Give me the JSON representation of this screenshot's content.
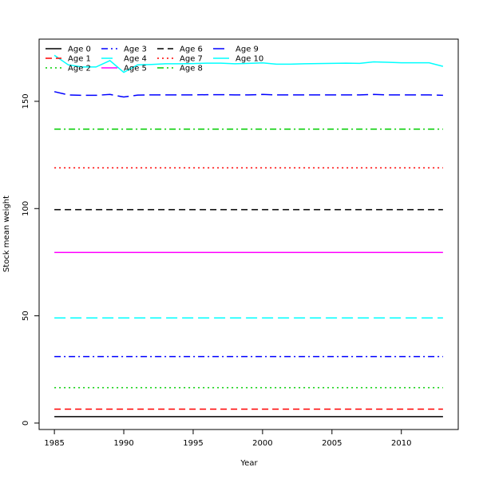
{
  "chart_data": {
    "type": "line",
    "title": "",
    "xlabel": "Year",
    "ylabel": "Stock mean weight",
    "xlim": [
      1983.9,
      2014.1
    ],
    "ylim": [
      -3,
      179
    ],
    "x_ticks": [
      1985,
      1990,
      1995,
      2000,
      2005,
      2010
    ],
    "y_ticks": [
      0,
      50,
      100,
      150
    ],
    "grid": false,
    "legend": "top-left",
    "x": [
      1985,
      1986,
      1987,
      1988,
      1989,
      1990,
      1991,
      1992,
      1993,
      1994,
      1995,
      1996,
      1997,
      1998,
      1999,
      2000,
      2001,
      2002,
      2003,
      2004,
      2005,
      2006,
      2007,
      2008,
      2009,
      2010,
      2011,
      2012,
      2013
    ],
    "series": [
      {
        "name": "Age 0",
        "color": "#000000",
        "dash": "solid",
        "constant": 3
      },
      {
        "name": "Age 1",
        "color": "#ff0000",
        "dash": "dash",
        "constant": 6.5
      },
      {
        "name": "Age 2",
        "color": "#00cd00",
        "dash": "dot",
        "constant": 16.5
      },
      {
        "name": "Age 3",
        "color": "#0000ff",
        "dash": "dashdot",
        "constant": 31
      },
      {
        "name": "Age 4",
        "color": "#00ffff",
        "dash": "longdash",
        "constant": 49
      },
      {
        "name": "Age 5",
        "color": "#ff00ff",
        "dash": "solid",
        "constant": 79.5
      },
      {
        "name": "Age 6",
        "color": "#000000",
        "dash": "dash",
        "constant": 99.5
      },
      {
        "name": "Age 7",
        "color": "#ff0000",
        "dash": "dot",
        "constant": 119
      },
      {
        "name": "Age 8",
        "color": "#00cd00",
        "dash": "dashdot",
        "constant": 137
      },
      {
        "name": "Age 9",
        "color": "#0000ff",
        "dash": "longdash",
        "values": [
          154.5,
          153,
          152.8,
          152.8,
          153.2,
          152,
          152.9,
          153,
          153,
          153,
          153,
          153.1,
          153.1,
          153,
          153,
          153.2,
          153,
          153,
          153,
          153,
          153,
          153,
          153,
          153.2,
          153,
          153,
          153,
          153,
          152.8
        ]
      },
      {
        "name": "Age 10",
        "color": "#00ffff",
        "dash": "solid",
        "values": [
          171.5,
          167,
          166,
          166,
          169,
          163.5,
          167,
          167.2,
          167.5,
          167.5,
          167.6,
          167.8,
          167.8,
          167.5,
          167.7,
          167.9,
          167.3,
          167.3,
          167.5,
          167.6,
          167.7,
          167.8,
          167.7,
          168.4,
          168.2,
          168,
          168,
          168,
          166.3
        ]
      }
    ]
  }
}
